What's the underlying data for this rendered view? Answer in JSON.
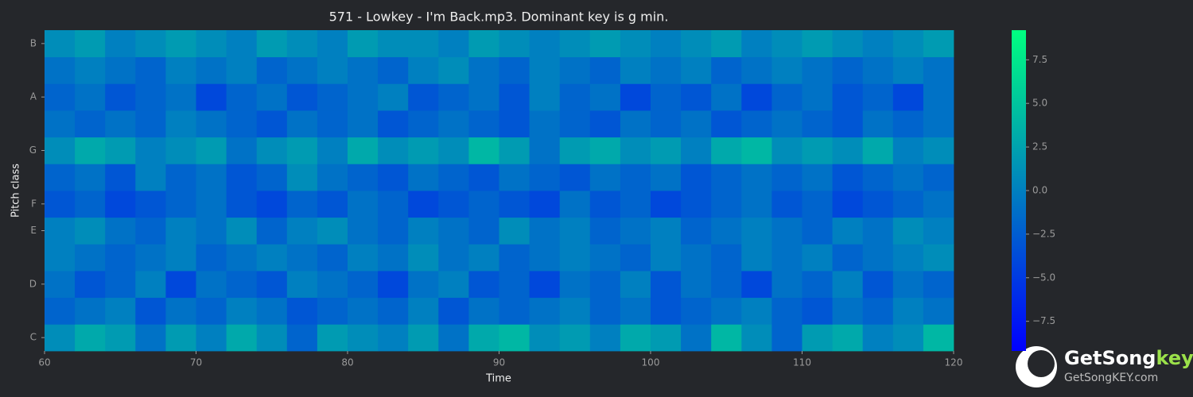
{
  "chart_data": {
    "type": "heatmap",
    "title": "571 - Lowkey - I'm Back.mp3. Dominant key is g min.",
    "xlabel": "Time",
    "ylabel": "Pitch class",
    "categories": [
      "C",
      null,
      "D",
      null,
      "E",
      "F",
      null,
      "G",
      null,
      "A",
      null,
      "B"
    ],
    "bins": [
      60,
      62,
      64,
      66,
      68,
      70,
      72,
      74,
      76,
      78,
      80,
      82,
      84,
      86,
      88,
      90,
      92,
      94,
      96,
      98,
      100,
      102,
      104,
      106,
      108,
      110,
      112,
      114,
      116,
      118,
      120
    ],
    "xlim": [
      60,
      120
    ],
    "xticks": [
      60,
      70,
      80,
      90,
      100,
      110,
      120
    ],
    "values": [
      [
        1,
        3,
        2,
        -1,
        2,
        0,
        3,
        1,
        -2,
        2,
        1,
        0,
        2,
        -1,
        3,
        4,
        1,
        2,
        0,
        3,
        2,
        -1,
        4,
        1,
        -2,
        2,
        3,
        0,
        1,
        4
      ],
      [
        -2,
        -1,
        0,
        -3,
        -1,
        -2,
        0,
        -1,
        -3,
        -2,
        -1,
        -2,
        0,
        -3,
        -1,
        -2,
        -1,
        0,
        -2,
        -1,
        -3,
        -2,
        -1,
        0,
        -2,
        -3,
        -1,
        -2,
        0,
        -1
      ],
      [
        -1,
        -3,
        -2,
        0,
        -4,
        -1,
        -2,
        -3,
        0,
        -1,
        -2,
        -4,
        -1,
        0,
        -3,
        -2,
        -4,
        -1,
        -2,
        0,
        -3,
        -1,
        -2,
        -4,
        -1,
        -2,
        0,
        -3,
        -1,
        -2
      ],
      [
        0,
        -1,
        -2,
        -1,
        0,
        -2,
        -1,
        0,
        -1,
        -2,
        0,
        -1,
        1,
        -1,
        0,
        -2,
        -1,
        0,
        -1,
        -2,
        0,
        -1,
        -2,
        0,
        -1,
        0,
        -2,
        -1,
        0,
        1
      ],
      [
        0,
        1,
        -1,
        -2,
        0,
        -1,
        1,
        -2,
        0,
        1,
        -1,
        -2,
        0,
        -1,
        -2,
        1,
        -1,
        0,
        -2,
        -1,
        0,
        -2,
        -1,
        0,
        -1,
        -2,
        0,
        -1,
        1,
        0
      ],
      [
        -3,
        -2,
        -4,
        -3,
        -2,
        -1,
        -3,
        -4,
        -2,
        -3,
        -1,
        -2,
        -4,
        -3,
        -2,
        -3,
        -4,
        -1,
        -3,
        -2,
        -4,
        -3,
        -2,
        -1,
        -3,
        -2,
        -4,
        -3,
        -2,
        -1
      ],
      [
        -2,
        -1,
        -3,
        0,
        -2,
        -1,
        -3,
        -2,
        1,
        -1,
        -2,
        -3,
        -1,
        -2,
        -3,
        -1,
        -2,
        -3,
        -1,
        -2,
        -1,
        -3,
        -2,
        -1,
        -2,
        -1,
        -3,
        -2,
        -1,
        -2
      ],
      [
        1,
        3,
        2,
        0,
        1,
        2,
        -1,
        1,
        2,
        0,
        3,
        1,
        2,
        1,
        4,
        2,
        -1,
        2,
        3,
        1,
        2,
        0,
        3,
        4,
        1,
        2,
        1,
        3,
        0,
        1
      ],
      [
        -1,
        -2,
        -1,
        -2,
        0,
        -1,
        -2,
        -3,
        -1,
        -2,
        -1,
        -3,
        -2,
        -1,
        -2,
        -3,
        -1,
        -2,
        -3,
        -1,
        -2,
        -1,
        -3,
        -2,
        -1,
        -2,
        -3,
        -1,
        -2,
        -1
      ],
      [
        -2,
        -1,
        -3,
        -2,
        -1,
        -4,
        -2,
        -1,
        -3,
        -2,
        -1,
        0,
        -3,
        -2,
        -1,
        -3,
        0,
        -2,
        -1,
        -4,
        -2,
        -3,
        -1,
        -4,
        -2,
        -1,
        -3,
        -2,
        -4,
        -1
      ],
      [
        -1,
        0,
        -1,
        -2,
        0,
        -1,
        0,
        -2,
        -1,
        0,
        -1,
        -2,
        0,
        1,
        -1,
        -2,
        0,
        -1,
        -2,
        0,
        -1,
        0,
        -2,
        -1,
        0,
        -1,
        -2,
        -1,
        0,
        -1
      ],
      [
        1,
        2,
        0,
        1,
        2,
        1,
        0,
        2,
        1,
        0,
        2,
        1,
        1,
        0,
        2,
        1,
        0,
        1,
        2,
        1,
        0,
        1,
        2,
        0,
        1,
        2,
        1,
        0,
        1,
        2
      ]
    ],
    "colormap": [
      "#0000ff",
      "#00ff80"
    ],
    "clim": [
      -9.2,
      9.2
    ],
    "cticks": [
      {
        "value": -7.5,
        "label": "−7.5"
      },
      {
        "value": -5,
        "label": "−5.0"
      },
      {
        "value": -2.5,
        "label": "−2.5"
      },
      {
        "value": 0,
        "label": "0.0"
      },
      {
        "value": 2.5,
        "label": "2.5"
      },
      {
        "value": 5,
        "label": "5.0"
      },
      {
        "value": 7.5,
        "label": "7.5"
      }
    ]
  },
  "watermark": {
    "brand": "GetSong",
    "brand_accent": "key",
    "url": "GetSongKEY.com"
  }
}
